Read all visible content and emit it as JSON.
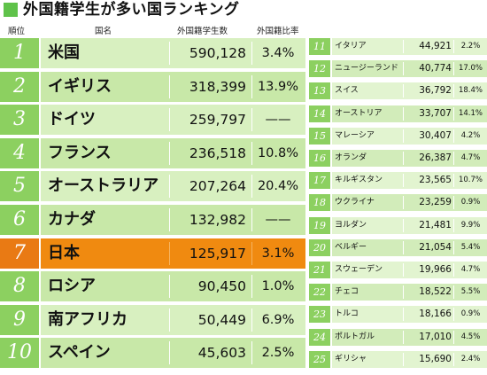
{
  "title": "外国籍学生が多い国ランキング",
  "colors": {
    "accent": "#8cd060",
    "highlight": "#f08a10"
  },
  "headers": {
    "rank": "順位",
    "country": "国名",
    "students": "外国籍学生数",
    "ratio": "外国籍比率"
  },
  "top10": [
    {
      "rank": "1",
      "country": "米国",
      "students": "590,128",
      "ratio": "3.4%"
    },
    {
      "rank": "2",
      "country": "イギリス",
      "students": "318,399",
      "ratio": "13.9%"
    },
    {
      "rank": "3",
      "country": "ドイツ",
      "students": "259,797",
      "ratio": "——"
    },
    {
      "rank": "4",
      "country": "フランス",
      "students": "236,518",
      "ratio": "10.8%"
    },
    {
      "rank": "5",
      "country": "オーストラリア",
      "students": "207,264",
      "ratio": "20.4%"
    },
    {
      "rank": "6",
      "country": "カナダ",
      "students": "132,982",
      "ratio": "——"
    },
    {
      "rank": "7",
      "country": "日本",
      "students": "125,917",
      "ratio": "3.1%",
      "highlight": true
    },
    {
      "rank": "8",
      "country": "ロシア",
      "students": "90,450",
      "ratio": "1.0%"
    },
    {
      "rank": "9",
      "country": "南アフリカ",
      "students": "50,449",
      "ratio": "6.9%"
    },
    {
      "rank": "10",
      "country": "スペイン",
      "students": "45,603",
      "ratio": "2.5%"
    }
  ],
  "rest": [
    {
      "rank": "11",
      "country": "イタリア",
      "students": "44,921",
      "ratio": "2.2%"
    },
    {
      "rank": "12",
      "country": "ニュージーランド",
      "students": "40,774",
      "ratio": "17.0%"
    },
    {
      "rank": "13",
      "country": "スイス",
      "students": "36,792",
      "ratio": "18.4%"
    },
    {
      "rank": "14",
      "country": "オーストリア",
      "students": "33,707",
      "ratio": "14.1%"
    },
    {
      "rank": "15",
      "country": "マレーシア",
      "students": "30,407",
      "ratio": "4.2%"
    },
    {
      "rank": "16",
      "country": "オランダ",
      "students": "26,387",
      "ratio": "4.7%"
    },
    {
      "rank": "17",
      "country": "キルギスタン",
      "students": "23,565",
      "ratio": "10.7%"
    },
    {
      "rank": "18",
      "country": "ウクライナ",
      "students": "23,259",
      "ratio": "0.9%"
    },
    {
      "rank": "19",
      "country": "ヨルダン",
      "students": "21,481",
      "ratio": "9.9%"
    },
    {
      "rank": "20",
      "country": "ベルギー",
      "students": "21,054",
      "ratio": "5.4%"
    },
    {
      "rank": "21",
      "country": "スウェーデン",
      "students": "19,966",
      "ratio": "4.7%"
    },
    {
      "rank": "22",
      "country": "チェコ",
      "students": "18,522",
      "ratio": "5.5%"
    },
    {
      "rank": "23",
      "country": "トルコ",
      "students": "18,166",
      "ratio": "0.9%"
    },
    {
      "rank": "24",
      "country": "ポルトガル",
      "students": "17,010",
      "ratio": "4.5%"
    },
    {
      "rank": "25",
      "country": "ギリシャ",
      "students": "15,690",
      "ratio": "2.4%"
    }
  ]
}
